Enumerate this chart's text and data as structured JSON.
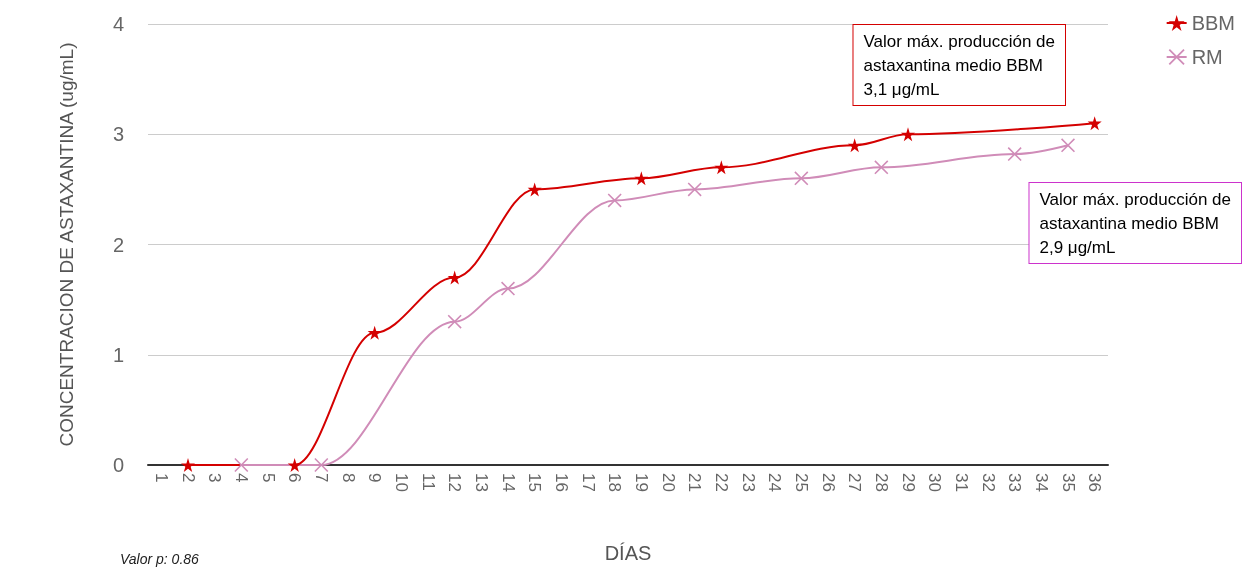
{
  "chart_data": {
    "type": "line",
    "xlabel": "DÍAS",
    "ylabel": "CONCENTRACION DE ASTAXANTINA (ug/mL)",
    "categories": [
      "1",
      "2",
      "3",
      "4",
      "5",
      "6",
      "7",
      "8",
      "9",
      "10",
      "11",
      "12",
      "13",
      "14",
      "15",
      "16",
      "17",
      "18",
      "19",
      "20",
      "21",
      "22",
      "23",
      "24",
      "25",
      "26",
      "27",
      "28",
      "29",
      "30",
      "31",
      "32",
      "33",
      "34",
      "35",
      "36"
    ],
    "series": [
      {
        "name": "BBM",
        "color": "#d40000",
        "marker": "star",
        "values": [
          null,
          0,
          null,
          null,
          null,
          0,
          null,
          null,
          1.2,
          null,
          null,
          1.7,
          null,
          null,
          2.5,
          null,
          null,
          null,
          2.6,
          null,
          null,
          2.7,
          null,
          null,
          null,
          null,
          2.9,
          null,
          3.0,
          null,
          null,
          null,
          null,
          null,
          null,
          3.1
        ]
      },
      {
        "name": "RM",
        "color": "#d08cb8",
        "marker": "cross",
        "values": [
          null,
          null,
          null,
          0,
          null,
          null,
          0,
          null,
          null,
          null,
          null,
          1.3,
          null,
          1.6,
          null,
          null,
          null,
          2.4,
          null,
          null,
          2.5,
          null,
          null,
          null,
          2.6,
          null,
          null,
          2.7,
          null,
          null,
          null,
          null,
          2.82,
          null,
          2.9,
          null
        ]
      }
    ],
    "ylim": [
      0,
      4
    ],
    "yticks": [
      0,
      1,
      2,
      3,
      4
    ],
    "grid": "y",
    "legend": "top right",
    "annotations": [
      "Valor máx. producción de\nastaxantina medio BBM\n3,1 μg/mL",
      "Valor máx. producción de\nastaxantina medio BBM\n2,9 μg/mL",
      "Valor p: 0.86"
    ]
  }
}
